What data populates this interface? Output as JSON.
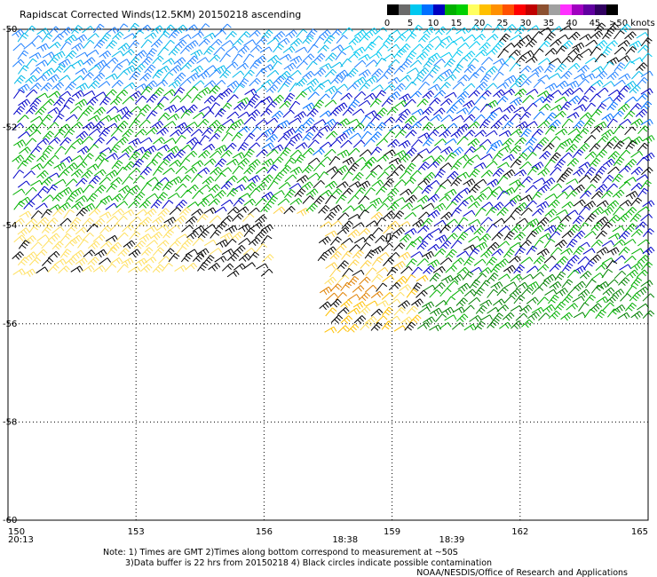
{
  "title": "Rapidscat Corrected Winds(12.5KM) 20150218 ascending",
  "color_scale": {
    "unit_label": ">50 knots",
    "tick_labels": [
      "0",
      "5",
      "10",
      "15",
      "20",
      "25",
      "30",
      "35",
      "40",
      "45"
    ],
    "colors": [
      "#000000",
      "#6a6a6a",
      "#00c8f0",
      "#0070ff",
      "#0000c0",
      "#00b000",
      "#00d000",
      "#ffff60",
      "#ffc000",
      "#ff9000",
      "#ff5000",
      "#ff0000",
      "#c00000",
      "#8c5030",
      "#a0a0a0",
      "#ff30ff",
      "#a000c0",
      "#6000a0",
      "#300060",
      "#000000"
    ]
  },
  "axes": {
    "x_ticks": [
      "150",
      "153",
      "156",
      "159",
      "162",
      "165"
    ],
    "y_ticks": [
      "-50",
      "-52",
      "-54",
      "-56",
      "-58",
      "-60"
    ]
  },
  "times": [
    {
      "label": "20:13",
      "lon": 150
    },
    {
      "label": "18:38",
      "lon": 157.9
    },
    {
      "label": "18:39",
      "lon": 160.4
    }
  ],
  "notes": {
    "line1": "Note: 1) Times are GMT 2)Times along bottom correspond to measurement at ~50S",
    "line2": "3)Data buffer is 22 hrs from 20150218 4) Black circles indicate possible contamination",
    "credit": "NOAA/NESDIS/Office of Research and Applications"
  },
  "swaths": [
    {
      "lon": [
        150,
        165
      ],
      "lat": [
        -50,
        -54
      ]
    },
    {
      "lon": [
        150,
        156
      ],
      "lat": [
        -54,
        -55.2
      ]
    },
    {
      "lon": [
        157.4,
        165
      ],
      "lat": [
        -54,
        -56.5
      ]
    }
  ]
}
